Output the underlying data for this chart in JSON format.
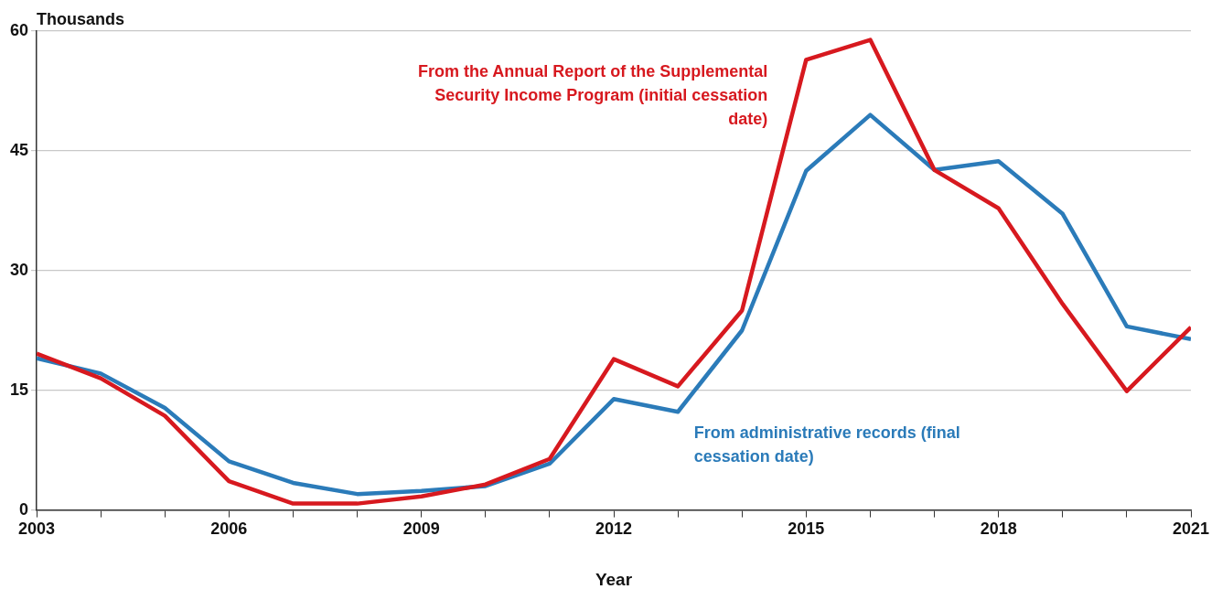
{
  "chart_data": {
    "type": "line",
    "xlabel": "Year",
    "ylabel": "Thousands",
    "x": [
      2003,
      2004,
      2005,
      2006,
      2007,
      2008,
      2009,
      2010,
      2011,
      2012,
      2013,
      2014,
      2015,
      2016,
      2017,
      2018,
      2019,
      2020,
      2021
    ],
    "series": [
      {
        "name": "From the Annual Report of the Supplemental Security Income Program (initial cessation date)",
        "color": "#d7191f",
        "values": [
          19.6,
          16.5,
          11.8,
          3.6,
          0.8,
          0.8,
          1.7,
          3.2,
          6.4,
          18.9,
          15.5,
          25.0,
          56.4,
          58.9,
          42.6,
          37.8,
          25.8,
          14.9,
          22.9
        ]
      },
      {
        "name": "From administrative records (final cessation date)",
        "color": "#2b7bb9",
        "values": [
          19.0,
          17.1,
          12.8,
          6.1,
          3.4,
          2.0,
          2.4,
          3.0,
          5.8,
          13.9,
          12.3,
          22.5,
          42.5,
          49.5,
          42.6,
          43.7,
          37.1,
          23.0,
          21.4
        ]
      }
    ],
    "xlim": [
      2003,
      2021
    ],
    "xticks": [
      2003,
      {
        "value": 2004,
        "label": null
      },
      {
        "value": 2005,
        "label": null
      },
      2006,
      {
        "value": 2007,
        "label": null
      },
      {
        "value": 2008,
        "label": null
      },
      2009,
      {
        "value": 2010,
        "label": null
      },
      {
        "value": 2011,
        "label": null
      },
      2012,
      {
        "value": 2013,
        "label": null
      },
      {
        "value": 2014,
        "label": null
      },
      2015,
      {
        "value": 2016,
        "label": null
      },
      {
        "value": 2017,
        "label": null
      },
      2018,
      {
        "value": 2019,
        "label": null
      },
      {
        "value": 2020,
        "label": null
      },
      2021
    ],
    "ylim": [
      0,
      60
    ],
    "yticks": [
      0,
      15,
      30,
      45,
      60
    ],
    "grid": "y",
    "legend": false,
    "marker": "none",
    "line_style": "solid"
  }
}
